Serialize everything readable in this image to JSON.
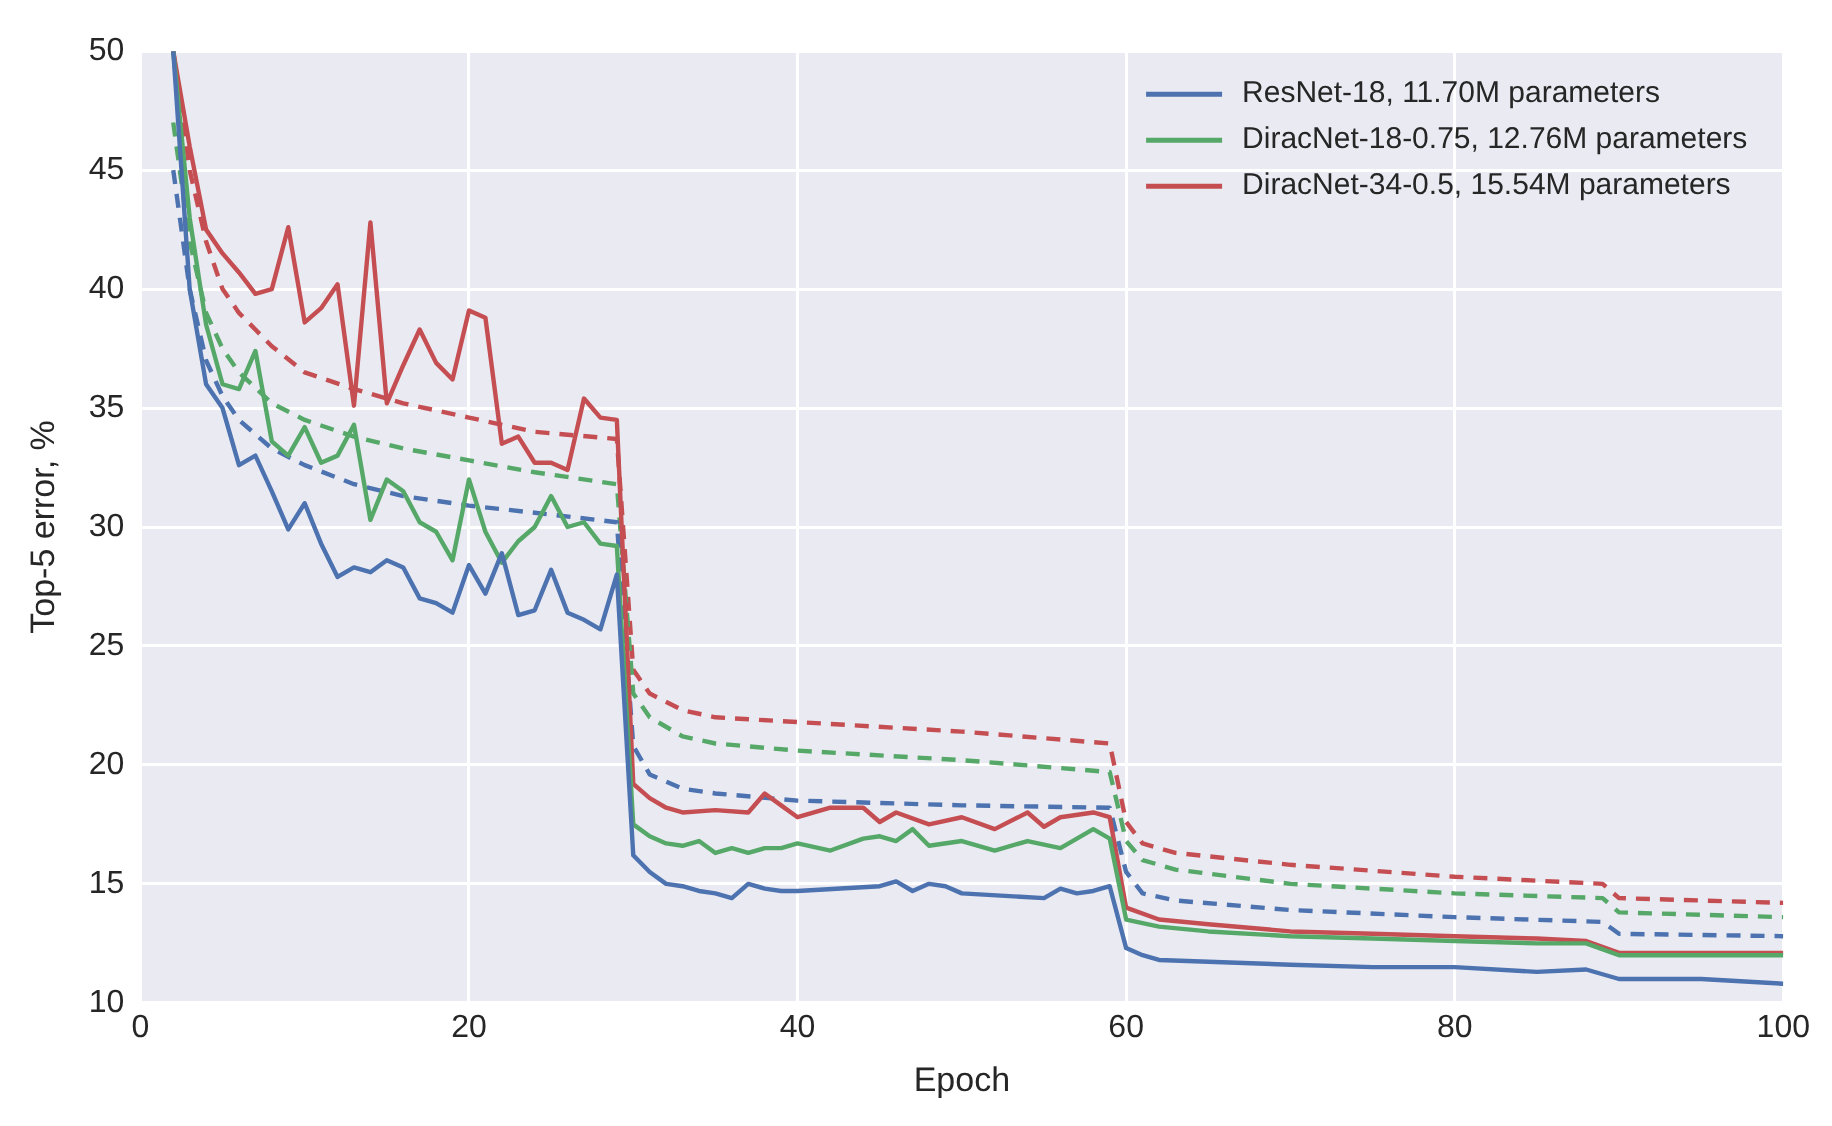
{
  "chart_data": {
    "type": "line",
    "xlabel": "Epoch",
    "ylabel": "Top-5 error, %",
    "xlim": [
      0,
      100
    ],
    "xticks": [
      0,
      20,
      40,
      60,
      80,
      100
    ],
    "ylim": [
      10,
      50
    ],
    "yticks": [
      10,
      15,
      20,
      25,
      30,
      35,
      40,
      45,
      50
    ],
    "grid": true,
    "legend": "top right",
    "marker": "none",
    "series": [
      {
        "name": "ResNet-18, 11.70M parameters",
        "color": "#4c72b0",
        "line_style": "solid",
        "x": [
          2,
          3,
          4,
          5,
          6,
          7,
          8,
          9,
          10,
          11,
          12,
          13,
          14,
          15,
          16,
          17,
          18,
          19,
          20,
          21,
          22,
          23,
          24,
          25,
          26,
          27,
          28,
          29,
          30,
          31,
          32,
          33,
          34,
          35,
          36,
          37,
          38,
          39,
          40,
          45,
          46,
          47,
          48,
          49,
          50,
          55,
          56,
          57,
          58,
          59,
          60,
          61,
          62,
          70,
          75,
          80,
          85,
          88,
          89,
          90,
          95,
          100
        ],
        "values": [
          50,
          40,
          36,
          35,
          32.6,
          33,
          31.5,
          29.9,
          31,
          29.3,
          27.9,
          28.3,
          28.1,
          28.6,
          28.3,
          27,
          26.8,
          26.4,
          28.4,
          27.2,
          28.9,
          26.3,
          26.5,
          28.2,
          26.4,
          26.1,
          25.7,
          28,
          16.2,
          15.5,
          15,
          14.9,
          14.7,
          14.6,
          14.4,
          15,
          14.8,
          14.7,
          14.7,
          14.9,
          15.1,
          14.7,
          15,
          14.9,
          14.6,
          14.4,
          14.8,
          14.6,
          14.7,
          14.9,
          12.3,
          12,
          11.8,
          11.6,
          11.5,
          11.5,
          11.3,
          11.4,
          11.2,
          11,
          11,
          10.8
        ]
      },
      {
        "name": "DiracNet-18-0.75, 12.76M parameters",
        "color": "#55a868",
        "line_style": "solid",
        "x": [
          2,
          3,
          4,
          5,
          6,
          7,
          8,
          9,
          10,
          11,
          12,
          13,
          14,
          15,
          16,
          17,
          18,
          19,
          20,
          21,
          22,
          23,
          24,
          25,
          26,
          27,
          28,
          29,
          30,
          31,
          32,
          33,
          34,
          35,
          36,
          37,
          38,
          39,
          40,
          42,
          44,
          45,
          46,
          47,
          48,
          50,
          52,
          54,
          56,
          58,
          59,
          60,
          62,
          65,
          70,
          75,
          80,
          85,
          88,
          90,
          95,
          100
        ],
        "values": [
          50,
          43,
          38.5,
          36,
          35.8,
          37.4,
          33.6,
          33,
          34.2,
          32.7,
          33,
          34.3,
          30.3,
          32,
          31.5,
          30.2,
          29.8,
          28.6,
          32,
          29.8,
          28.5,
          29.4,
          30,
          31.3,
          30,
          30.2,
          29.3,
          29.2,
          17.5,
          17,
          16.7,
          16.6,
          16.8,
          16.3,
          16.5,
          16.3,
          16.5,
          16.5,
          16.7,
          16.4,
          16.9,
          17,
          16.8,
          17.3,
          16.6,
          16.8,
          16.4,
          16.8,
          16.5,
          17.3,
          16.9,
          13.5,
          13.2,
          13,
          12.8,
          12.7,
          12.6,
          12.5,
          12.5,
          12,
          12,
          12
        ]
      },
      {
        "name": "DiracNet-34-0.5, 15.54M parameters",
        "color": "#c44e52",
        "line_style": "solid",
        "x": [
          2,
          3,
          4,
          5,
          6,
          7,
          8,
          9,
          10,
          11,
          12,
          13,
          14,
          15,
          16,
          17,
          18,
          19,
          20,
          21,
          22,
          23,
          24,
          25,
          26,
          27,
          28,
          29,
          30,
          31,
          32,
          33,
          35,
          37,
          38,
          39,
          40,
          42,
          44,
          45,
          46,
          48,
          50,
          52,
          54,
          55,
          56,
          58,
          59,
          60,
          62,
          65,
          70,
          75,
          80,
          85,
          88,
          90,
          95,
          100
        ],
        "values": [
          50,
          46,
          42.5,
          41.5,
          40.7,
          39.8,
          40,
          42.6,
          38.6,
          39.2,
          40.2,
          35.1,
          42.8,
          35.2,
          36.8,
          38.3,
          36.9,
          36.2,
          39.1,
          38.8,
          33.5,
          33.8,
          32.7,
          32.7,
          32.4,
          35.4,
          34.6,
          34.5,
          19.2,
          18.6,
          18.2,
          18,
          18.1,
          18,
          18.8,
          18.3,
          17.8,
          18.2,
          18.2,
          17.6,
          18,
          17.5,
          17.8,
          17.3,
          18,
          17.4,
          17.8,
          18,
          17.8,
          14,
          13.5,
          13.3,
          13,
          12.9,
          12.8,
          12.7,
          12.6,
          12.1,
          12.1,
          12.1
        ]
      },
      {
        "color": "#4c72b0",
        "line_style": "dashed",
        "x": [
          2,
          3,
          4,
          5,
          6,
          8,
          10,
          13,
          16,
          20,
          24,
          29,
          30,
          31,
          33,
          35,
          40,
          50,
          59,
          60,
          61,
          63,
          70,
          80,
          89,
          90,
          100
        ],
        "values": [
          45,
          40,
          37,
          35.5,
          34.5,
          33.3,
          32.6,
          31.8,
          31.3,
          30.9,
          30.6,
          30.2,
          20.8,
          19.6,
          19,
          18.8,
          18.5,
          18.3,
          18.2,
          15.5,
          14.6,
          14.3,
          13.9,
          13.6,
          13.4,
          12.9,
          12.8
        ]
      },
      {
        "color": "#55a868",
        "line_style": "dashed",
        "x": [
          2,
          3,
          4,
          5,
          6,
          8,
          10,
          13,
          16,
          20,
          24,
          29,
          30,
          31,
          33,
          35,
          40,
          50,
          59,
          60,
          61,
          63,
          70,
          80,
          89,
          90,
          100
        ],
        "values": [
          47,
          42,
          39,
          37.5,
          36.5,
          35.2,
          34.5,
          33.8,
          33.3,
          32.8,
          32.3,
          31.8,
          23,
          22,
          21.2,
          20.9,
          20.6,
          20.2,
          19.7,
          16.8,
          16,
          15.6,
          15,
          14.6,
          14.4,
          13.8,
          13.6
        ]
      },
      {
        "color": "#c44e52",
        "line_style": "dashed",
        "x": [
          2,
          3,
          4,
          5,
          6,
          8,
          10,
          13,
          16,
          20,
          24,
          29,
          30,
          31,
          33,
          35,
          40,
          50,
          59,
          60,
          61,
          63,
          70,
          80,
          89,
          90,
          100
        ],
        "values": [
          50,
          45,
          42,
          40,
          39,
          37.6,
          36.5,
          35.8,
          35.2,
          34.6,
          34,
          33.7,
          24,
          23,
          22.3,
          22,
          21.8,
          21.4,
          20.9,
          17.6,
          16.7,
          16.3,
          15.8,
          15.3,
          15,
          14.4,
          14.2
        ]
      }
    ]
  }
}
